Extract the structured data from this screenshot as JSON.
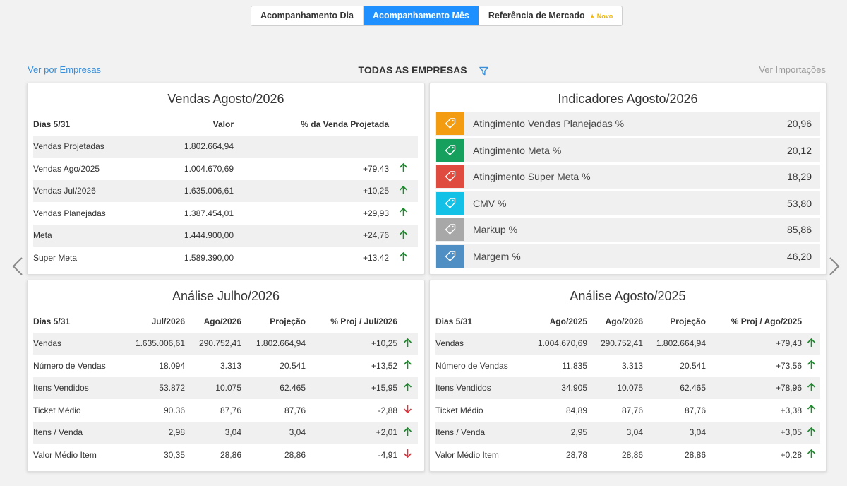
{
  "tabs": [
    {
      "label": "Acompanhamento Dia",
      "active": false
    },
    {
      "label": "Acompanhamento Mês",
      "active": true
    },
    {
      "label": "Referência de Mercado",
      "active": false,
      "badge": "Novo"
    }
  ],
  "header": {
    "left_link": "Ver por Empresas",
    "title": "TODAS AS EMPRESAS",
    "right_link": "Ver Importações"
  },
  "vendas": {
    "title": "Vendas Agosto/2026",
    "headers": [
      "Dias 5/31",
      "Valor",
      "% da Venda Projetada"
    ],
    "rows": [
      {
        "label": "Vendas Projetadas",
        "valor": "1.802.664,94",
        "pct": "",
        "trend": ""
      },
      {
        "label": "Vendas Ago/2025",
        "valor": "1.004.670,69",
        "pct": "+79.43",
        "trend": "up"
      },
      {
        "label": "Vendas Jul/2026",
        "valor": "1.635.006,61",
        "pct": "+10,25",
        "trend": "up"
      },
      {
        "label": "Vendas Planejadas",
        "valor": "1.387.454,01",
        "pct": "+29,93",
        "trend": "up"
      },
      {
        "label": "Meta",
        "valor": "1.444.900,00",
        "pct": "+24,76",
        "trend": "up"
      },
      {
        "label": "Super Meta",
        "valor": "1.589.390,00",
        "pct": "+13.42",
        "trend": "up"
      }
    ]
  },
  "indicadores": {
    "title": "Indicadores Agosto/2026",
    "items": [
      {
        "label": "Atingimento Vendas Planejadas %",
        "value": "20,96",
        "color": "#f39c12",
        "icon": "tag-icon"
      },
      {
        "label": "Atingimento Meta %",
        "value": "20,12",
        "color": "#16a05d",
        "icon": "tag-icon"
      },
      {
        "label": "Atingimento Super Meta %",
        "value": "18,29",
        "color": "#e04b3f",
        "icon": "tag-icon"
      },
      {
        "label": "CMV %",
        "value": "53,80",
        "color": "#13c0e6",
        "icon": "tag-icon"
      },
      {
        "label": "Markup %",
        "value": "85,86",
        "color": "#a8a8a8",
        "icon": "tag-icon"
      },
      {
        "label": "Margem %",
        "value": "46,20",
        "color": "#4f8fc4",
        "icon": "tag-icon"
      }
    ]
  },
  "analise_julho": {
    "title": "Análise Julho/2026",
    "headers": [
      "Dias 5/31",
      "Jul/2026",
      "Ago/2026",
      "Projeção",
      "% Proj / Jul/2026"
    ],
    "rows": [
      {
        "label": "Vendas",
        "c1": "1.635.006,61",
        "c2": "290.752,41",
        "c3": "1.802.664,94",
        "pct": "+10,25",
        "trend": "up"
      },
      {
        "label": "Número de Vendas",
        "c1": "18.094",
        "c2": "3.313",
        "c3": "20.541",
        "pct": "+13,52",
        "trend": "up"
      },
      {
        "label": "Itens Vendidos",
        "c1": "53.872",
        "c2": "10.075",
        "c3": "62.465",
        "pct": "+15,95",
        "trend": "up"
      },
      {
        "label": "Ticket Médio",
        "c1": "90.36",
        "c2": "87,76",
        "c3": "87,76",
        "pct": "-2,88",
        "trend": "down"
      },
      {
        "label": "Itens / Venda",
        "c1": "2,98",
        "c2": "3,04",
        "c3": "3,04",
        "pct": "+2,01",
        "trend": "up"
      },
      {
        "label": "Valor Médio Item",
        "c1": "30,35",
        "c2": "28,86",
        "c3": "28,86",
        "pct": "-4,91",
        "trend": "down"
      }
    ]
  },
  "analise_agosto": {
    "title": "Análise Agosto/2025",
    "headers": [
      "Dias 5/31",
      "Ago/2025",
      "Ago/2026",
      "Projeção",
      "% Proj / Ago/2025"
    ],
    "rows": [
      {
        "label": "Vendas",
        "c1": "1.004.670,69",
        "c2": "290.752,41",
        "c3": "1.802.664,94",
        "pct": "+79,43",
        "trend": "up"
      },
      {
        "label": "Número de Vendas",
        "c1": "11.835",
        "c2": "3.313",
        "c3": "20.541",
        "pct": "+73,56",
        "trend": "up"
      },
      {
        "label": "Itens Vendidos",
        "c1": "34.905",
        "c2": "10.075",
        "c3": "62.465",
        "pct": "+78,96",
        "trend": "up"
      },
      {
        "label": "Ticket Médio",
        "c1": "84,89",
        "c2": "87,76",
        "c3": "87,76",
        "pct": "+3,38",
        "trend": "up"
      },
      {
        "label": "Itens / Venda",
        "c1": "2,95",
        "c2": "3,04",
        "c3": "3,04",
        "pct": "+3,05",
        "trend": "up"
      },
      {
        "label": "Valor Médio Item",
        "c1": "28,78",
        "c2": "28,86",
        "c3": "28,86",
        "pct": "+0,28",
        "trend": "up"
      }
    ]
  },
  "colors": {
    "up": "#1e8a2e",
    "down": "#d9363e",
    "accent": "#1e90ff"
  }
}
